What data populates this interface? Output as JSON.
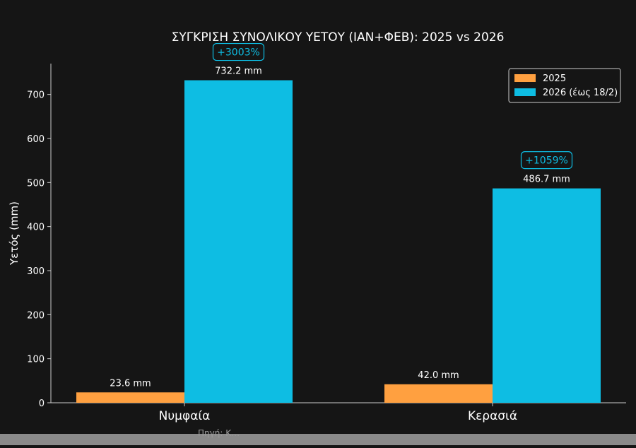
{
  "chart_data": {
    "type": "bar",
    "title": "ΣΥΓΚΡΙΣΗ ΣΥΝΟΛΙΚΟΥ ΥΕΤΟΥ (ΙΑΝ+ΦΕΒ): 2025 vs 2026",
    "xlabel": "",
    "ylabel": "Υετός (mm)",
    "categories": [
      "Νυμφαία",
      "Κερασιά"
    ],
    "series": [
      {
        "name": "2025",
        "values": [
          23.6,
          42.0
        ],
        "color": "#ffa040"
      },
      {
        "name": "2026 (έως 18/2)",
        "values": [
          732.2,
          486.7
        ],
        "color": "#0ebde3"
      }
    ],
    "value_labels": [
      [
        "23.6 mm",
        "42.0 mm"
      ],
      [
        "732.2 mm",
        "486.7 mm"
      ]
    ],
    "change_labels": [
      "+3003%",
      "+1059%"
    ],
    "ylim": [
      0,
      770
    ],
    "yticks": [
      0,
      100,
      200,
      300,
      400,
      500,
      600,
      700
    ],
    "grid": false,
    "legend_position": "top-right"
  },
  "source_note": "Πηγή: Κ…"
}
